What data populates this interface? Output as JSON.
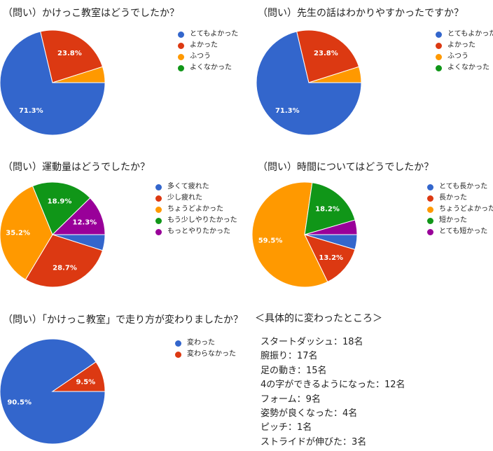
{
  "colors": {
    "blue": "#3366cc",
    "red": "#dc3912",
    "orange": "#ff9900",
    "green": "#109618",
    "purple": "#990099"
  },
  "chart_data": [
    {
      "type": "pie",
      "title": "（問い）かけっこ教室はどうでしたか？",
      "slices": [
        {
          "label": "とてもよかった",
          "value": 71.3,
          "color": "#3366cc",
          "shown_label": "71.3%"
        },
        {
          "label": "よかった",
          "value": 23.8,
          "color": "#dc3912",
          "shown_label": "23.8%"
        },
        {
          "label": "ふつう",
          "value": 4.9,
          "color": "#ff9900",
          "shown_label": ""
        },
        {
          "label": "よくなかった",
          "value": 0,
          "color": "#109618",
          "shown_label": ""
        }
      ],
      "legend_position": "right"
    },
    {
      "type": "pie",
      "title": "（問い）先生の話はわかりやすかったですか？",
      "slices": [
        {
          "label": "とてもよかった",
          "value": 71.3,
          "color": "#3366cc",
          "shown_label": "71.3%"
        },
        {
          "label": "よかった",
          "value": 23.8,
          "color": "#dc3912",
          "shown_label": "23.8%"
        },
        {
          "label": "ふつう",
          "value": 4.9,
          "color": "#ff9900",
          "shown_label": ""
        },
        {
          "label": "よくなかった",
          "value": 0,
          "color": "#109618",
          "shown_label": ""
        }
      ],
      "legend_position": "right"
    },
    {
      "type": "pie",
      "title": "（問い）運動量はどうでしたか？",
      "slices": [
        {
          "label": "多くて疲れた",
          "value": 4.9,
          "color": "#3366cc",
          "shown_label": ""
        },
        {
          "label": "少し疲れた",
          "value": 28.7,
          "color": "#dc3912",
          "shown_label": "28.7%"
        },
        {
          "label": "ちょうどよかった",
          "value": 35.2,
          "color": "#ff9900",
          "shown_label": "35.2%"
        },
        {
          "label": "もう少しやりたかった",
          "value": 18.9,
          "color": "#109618",
          "shown_label": "18.9%"
        },
        {
          "label": "もっとやりたかった",
          "value": 12.3,
          "color": "#990099",
          "shown_label": "12.3%"
        }
      ],
      "legend_position": "right"
    },
    {
      "type": "pie",
      "title": "（問い）時間についてはどうでしたか？",
      "slices": [
        {
          "label": "とても長かった",
          "value": 4.6,
          "color": "#3366cc",
          "shown_label": ""
        },
        {
          "label": "長かった",
          "value": 13.2,
          "color": "#dc3912",
          "shown_label": "13.2%"
        },
        {
          "label": "ちょうどよかった",
          "value": 59.5,
          "color": "#ff9900",
          "shown_label": "59.5%"
        },
        {
          "label": "短かった",
          "value": 18.2,
          "color": "#109618",
          "shown_label": "18.2%"
        },
        {
          "label": "とても短かった",
          "value": 4.5,
          "color": "#990099",
          "shown_label": ""
        }
      ],
      "legend_position": "right"
    },
    {
      "type": "pie",
      "title": "（問い）「かけっこ教室」で走り方が変わりましたか？",
      "slices": [
        {
          "label": "変わった",
          "value": 90.5,
          "color": "#3366cc",
          "shown_label": "90.5%"
        },
        {
          "label": "変わらなかった",
          "value": 9.5,
          "color": "#dc3912",
          "shown_label": "9.5%"
        }
      ],
      "legend_position": "right"
    }
  ],
  "changes": {
    "title": "＜具体的に変わったところ＞",
    "items": [
      "スタートダッシュ：18名",
      "腕振り：17名",
      "足の動き：15名",
      "4の字ができるようになった：12名",
      "フォーム：9名",
      "姿勢が良くなった：4名",
      "ピッチ：1名",
      "ストライドが伸びた：3名"
    ]
  }
}
